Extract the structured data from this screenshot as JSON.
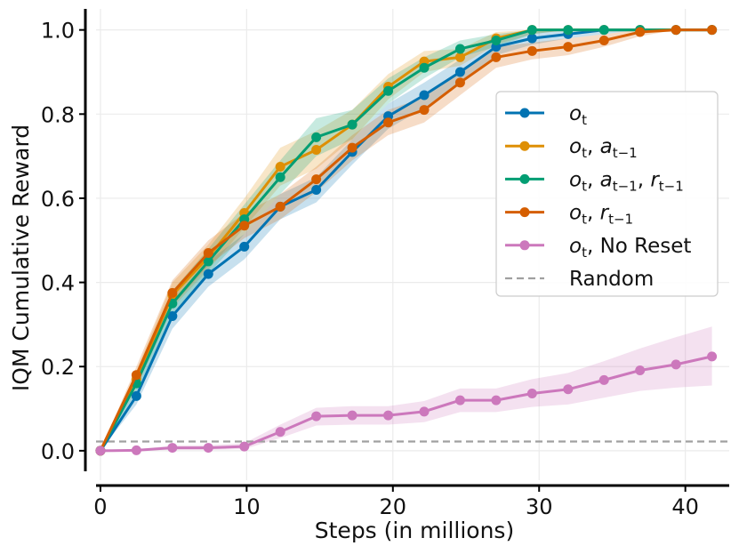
{
  "chart_data": {
    "type": "line",
    "xlabel": "Steps (in millions)",
    "ylabel": "IQM Cumulative Reward",
    "xlim": [
      -0.3,
      43
    ],
    "ylim": [
      -0.07,
      1.05
    ],
    "xticks": [
      0,
      10,
      20,
      30,
      40
    ],
    "xtick_labels": [
      "0",
      "10",
      "20",
      "30",
      "40"
    ],
    "yticks": [
      0.0,
      0.2,
      0.4,
      0.6,
      0.8,
      1.0
    ],
    "ytick_labels": [
      "0.0",
      "0.2",
      "0.4",
      "0.6",
      "0.8",
      "1.0"
    ],
    "grid": true,
    "legend_position": "center-right",
    "x": [
      0,
      2.46,
      4.92,
      7.38,
      9.84,
      12.3,
      14.76,
      17.22,
      19.68,
      22.14,
      24.6,
      27.06,
      29.52,
      31.98,
      34.44,
      36.9,
      39.36,
      41.82
    ],
    "series": [
      {
        "name": "o_t",
        "label_parts": [
          {
            "t": "o",
            "i": true
          },
          {
            "t": "t",
            "sub": true
          }
        ],
        "color": "#0173b2",
        "values": [
          0.0,
          0.13,
          0.32,
          0.42,
          0.485,
          0.58,
          0.62,
          0.71,
          0.795,
          0.845,
          0.9,
          0.96,
          0.98,
          0.99,
          1.0,
          1.0,
          1.0,
          1.0
        ],
        "lower": [
          0.0,
          0.11,
          0.29,
          0.39,
          0.455,
          0.55,
          0.59,
          0.68,
          0.765,
          0.815,
          0.87,
          0.94,
          0.965,
          0.98,
          0.99,
          1.0,
          1.0,
          1.0
        ],
        "upper": [
          0.0,
          0.15,
          0.35,
          0.45,
          0.515,
          0.61,
          0.65,
          0.74,
          0.825,
          0.875,
          0.93,
          0.98,
          0.995,
          1.0,
          1.0,
          1.0,
          1.0,
          1.0
        ]
      },
      {
        "name": "o_t, a_{t-1}",
        "label_parts": [
          {
            "t": "o",
            "i": true
          },
          {
            "t": "t",
            "sub": true
          },
          {
            "t": ", "
          },
          {
            "t": "a",
            "i": true
          },
          {
            "t": "t−1",
            "sub": true
          }
        ],
        "color": "#de8f05",
        "values": [
          0.0,
          0.17,
          0.37,
          0.46,
          0.565,
          0.675,
          0.715,
          0.775,
          0.865,
          0.925,
          0.935,
          0.98,
          1.0,
          1.0,
          1.0,
          1.0,
          1.0,
          1.0
        ],
        "lower": [
          0.0,
          0.15,
          0.34,
          0.43,
          0.53,
          0.63,
          0.67,
          0.74,
          0.835,
          0.9,
          0.915,
          0.965,
          0.99,
          1.0,
          1.0,
          1.0,
          1.0,
          1.0
        ],
        "upper": [
          0.0,
          0.19,
          0.4,
          0.49,
          0.6,
          0.72,
          0.76,
          0.81,
          0.895,
          0.95,
          0.955,
          0.995,
          1.0,
          1.0,
          1.0,
          1.0,
          1.0,
          1.0
        ]
      },
      {
        "name": "o_t, a_{t-1}, r_{t-1}",
        "label_parts": [
          {
            "t": "o",
            "i": true
          },
          {
            "t": "t",
            "sub": true
          },
          {
            "t": ", "
          },
          {
            "t": "a",
            "i": true
          },
          {
            "t": "t−1",
            "sub": true
          },
          {
            "t": ", "
          },
          {
            "t": "r",
            "i": true
          },
          {
            "t": "t−1",
            "sub": true
          }
        ],
        "color": "#029e73",
        "values": [
          0.0,
          0.16,
          0.35,
          0.45,
          0.55,
          0.65,
          0.745,
          0.775,
          0.855,
          0.91,
          0.955,
          0.975,
          1.0,
          1.0,
          1.0,
          1.0,
          1.0,
          1.0
        ],
        "lower": [
          0.0,
          0.14,
          0.32,
          0.42,
          0.515,
          0.61,
          0.7,
          0.74,
          0.825,
          0.885,
          0.935,
          0.96,
          0.99,
          1.0,
          1.0,
          1.0,
          1.0,
          1.0
        ],
        "upper": [
          0.0,
          0.18,
          0.38,
          0.48,
          0.585,
          0.69,
          0.79,
          0.81,
          0.885,
          0.935,
          0.975,
          0.99,
          1.0,
          1.0,
          1.0,
          1.0,
          1.0,
          1.0
        ]
      },
      {
        "name": "o_t, r_{t-1}",
        "label_parts": [
          {
            "t": "o",
            "i": true
          },
          {
            "t": "t",
            "sub": true
          },
          {
            "t": ", "
          },
          {
            "t": "r",
            "i": true
          },
          {
            "t": "t−1",
            "sub": true
          }
        ],
        "color": "#d55e00",
        "values": [
          0.0,
          0.18,
          0.375,
          0.47,
          0.535,
          0.58,
          0.645,
          0.72,
          0.78,
          0.81,
          0.875,
          0.935,
          0.95,
          0.96,
          0.975,
          0.995,
          1.0,
          1.0
        ],
        "lower": [
          0.0,
          0.16,
          0.345,
          0.44,
          0.505,
          0.55,
          0.615,
          0.69,
          0.75,
          0.78,
          0.845,
          0.91,
          0.93,
          0.94,
          0.96,
          0.985,
          1.0,
          1.0
        ],
        "upper": [
          0.0,
          0.2,
          0.405,
          0.5,
          0.565,
          0.61,
          0.675,
          0.75,
          0.81,
          0.84,
          0.905,
          0.96,
          0.97,
          0.98,
          0.99,
          1.0,
          1.0,
          1.0
        ]
      },
      {
        "name": "o_t, No Reset",
        "label_parts": [
          {
            "t": "o",
            "i": true
          },
          {
            "t": "t",
            "sub": true
          },
          {
            "t": ", No Reset"
          }
        ],
        "color": "#cc78bc",
        "values": [
          0.0,
          0.001,
          0.007,
          0.007,
          0.01,
          0.045,
          0.082,
          0.084,
          0.084,
          0.093,
          0.12,
          0.12,
          0.136,
          0.146,
          0.168,
          0.191,
          0.205,
          0.224
        ],
        "lower": [
          0.0,
          0.0,
          0.002,
          0.002,
          0.004,
          0.03,
          0.06,
          0.062,
          0.062,
          0.068,
          0.092,
          0.092,
          0.104,
          0.11,
          0.126,
          0.142,
          0.15,
          0.155
        ],
        "upper": [
          0.0,
          0.003,
          0.013,
          0.013,
          0.018,
          0.062,
          0.102,
          0.106,
          0.106,
          0.118,
          0.148,
          0.148,
          0.17,
          0.185,
          0.213,
          0.243,
          0.27,
          0.295
        ]
      }
    ],
    "reference_line": {
      "name": "Random",
      "value": 0.022,
      "color": "#a0a0a0"
    }
  }
}
